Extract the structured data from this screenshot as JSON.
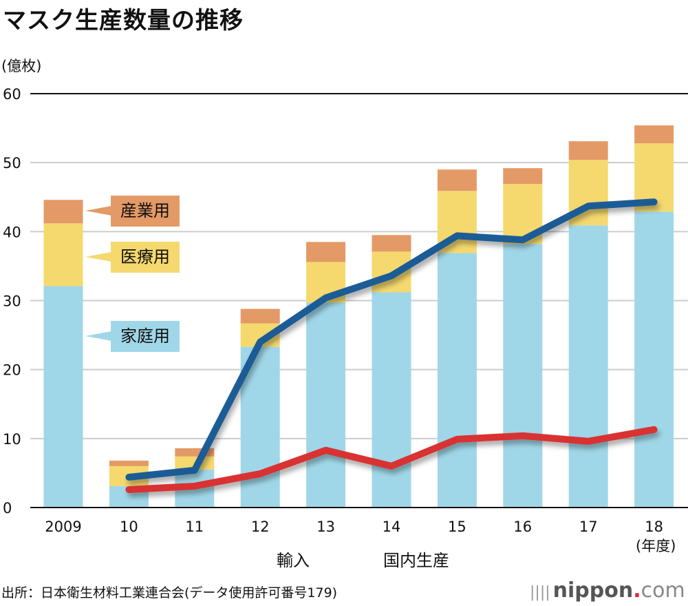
{
  "title": "マスク生産数量の推移",
  "unit_label": "(億枚)",
  "x_unit_label": "(年度)",
  "source": "出所：日本衛生材料工業連合会(データ使用許可番号179)",
  "logo": {
    "bars": "||||",
    "brand": "nippon",
    "dot": ".",
    "com": "com"
  },
  "chart_data": {
    "type": "bar",
    "subtype": "stacked bar with line overlay",
    "title": "マスク生産数量の推移",
    "ylabel": "(億枚)",
    "xlabel": "(年度)",
    "ylim": [
      0,
      60
    ],
    "yticks": [
      0,
      10,
      20,
      30,
      40,
      50,
      60
    ],
    "grid": true,
    "categories": [
      "2009",
      "10",
      "11",
      "12",
      "13",
      "14",
      "15",
      "16",
      "17",
      "18"
    ],
    "stack_series": [
      {
        "name": "家庭用",
        "color": "#a0d7e8",
        "values": [
          32.1,
          3.1,
          5.5,
          23.3,
          29.7,
          31.2,
          36.9,
          38.2,
          40.9,
          42.9
        ]
      },
      {
        "name": "医療用",
        "color": "#f5d96e",
        "values": [
          9.1,
          2.9,
          1.9,
          3.4,
          5.9,
          5.9,
          9.0,
          8.7,
          9.5,
          9.9
        ]
      },
      {
        "name": "産業用",
        "color": "#e49a66",
        "values": [
          3.4,
          0.8,
          1.2,
          2.1,
          2.9,
          2.4,
          3.1,
          2.3,
          2.7,
          2.6
        ]
      }
    ],
    "line_series": [
      {
        "name": "輸入",
        "color": "#1a5c96",
        "categories": [
          "10",
          "11",
          "12",
          "13",
          "14",
          "15",
          "16",
          "17",
          "18"
        ],
        "values": [
          4.4,
          5.4,
          24.0,
          30.4,
          33.6,
          39.4,
          38.8,
          43.7,
          44.3
        ]
      },
      {
        "name": "国内生産",
        "color": "#d93030",
        "categories": [
          "10",
          "11",
          "12",
          "13",
          "14",
          "15",
          "16",
          "17",
          "18"
        ],
        "values": [
          2.6,
          3.1,
          4.9,
          8.3,
          6.0,
          9.9,
          10.4,
          9.6,
          11.3
        ]
      }
    ],
    "legend": {
      "placement": "bottom-center",
      "entries": [
        "輸入",
        "国内生産"
      ]
    },
    "callouts": [
      "産業用",
      "医療用",
      "家庭用"
    ]
  }
}
